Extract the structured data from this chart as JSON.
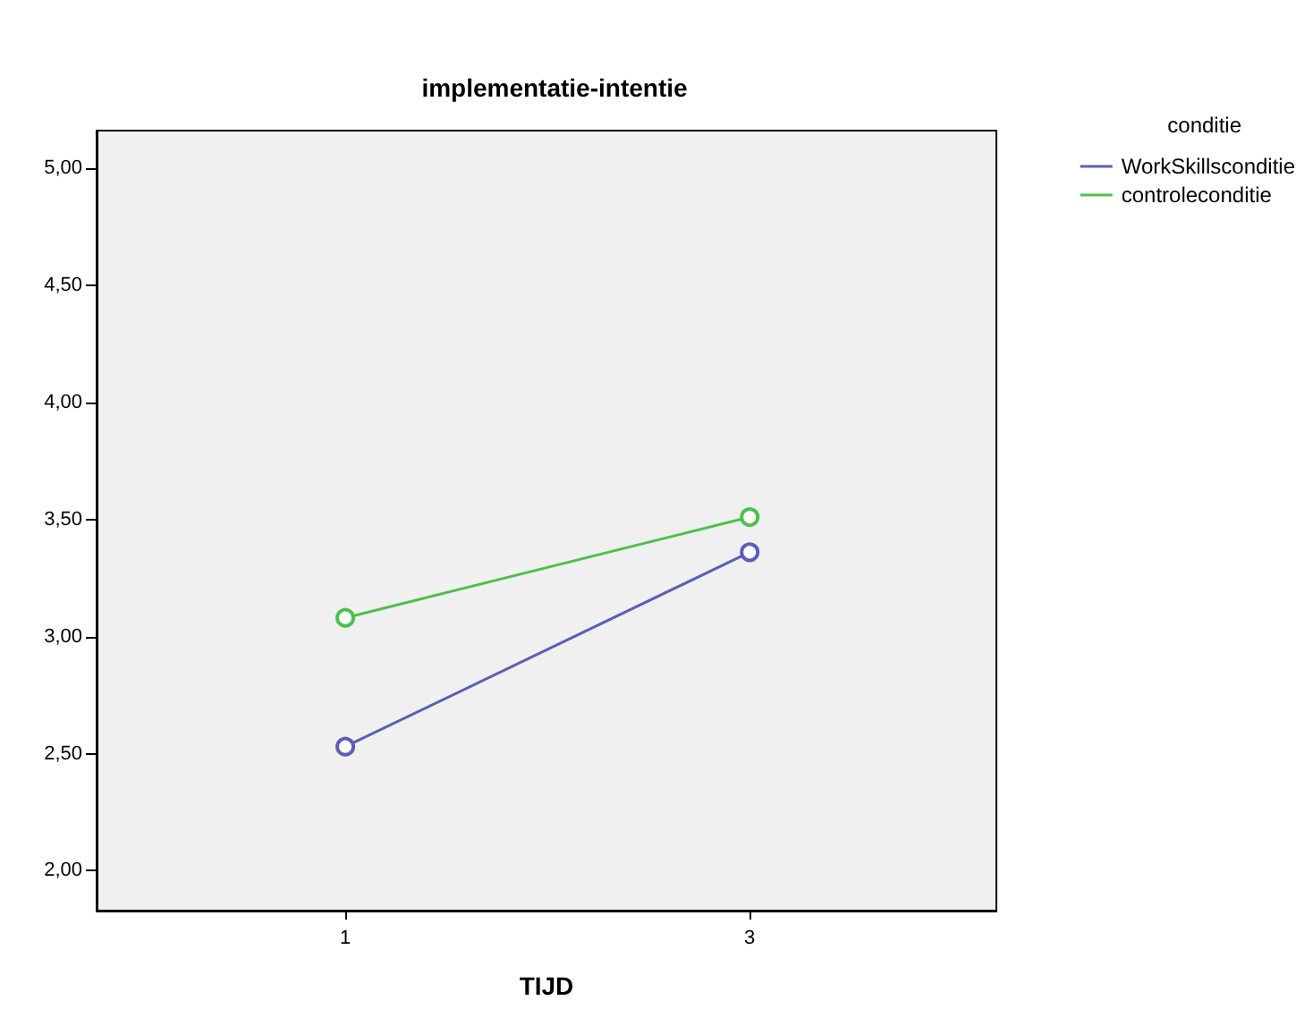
{
  "chart_data": {
    "type": "line",
    "title": "implementatie-intentie",
    "xlabel": "TIJD",
    "legend_title": "conditie",
    "x": [
      1,
      3
    ],
    "xlim": [
      -0.23,
      4.22
    ],
    "xticks": [
      1,
      3
    ],
    "ylim": [
      1.83,
      5.16
    ],
    "yticks": [
      {
        "value": 2,
        "label": "2,00"
      },
      {
        "value": 2.5,
        "label": "2,50"
      },
      {
        "value": 3,
        "label": "3,00"
      },
      {
        "value": 3.5,
        "label": "3,50"
      },
      {
        "value": 4,
        "label": "4,00"
      },
      {
        "value": 4.5,
        "label": "4,50"
      },
      {
        "value": 5,
        "label": "5,00"
      }
    ],
    "series": [
      {
        "name": "WorkSkillsconditie",
        "color": "#5a5fb8",
        "values": [
          2.53,
          3.36
        ]
      },
      {
        "name": "controleconditie",
        "color": "#4cc04c",
        "values": [
          3.08,
          3.51
        ]
      }
    ],
    "marker": "circle",
    "grid": false,
    "legend": "top right"
  }
}
